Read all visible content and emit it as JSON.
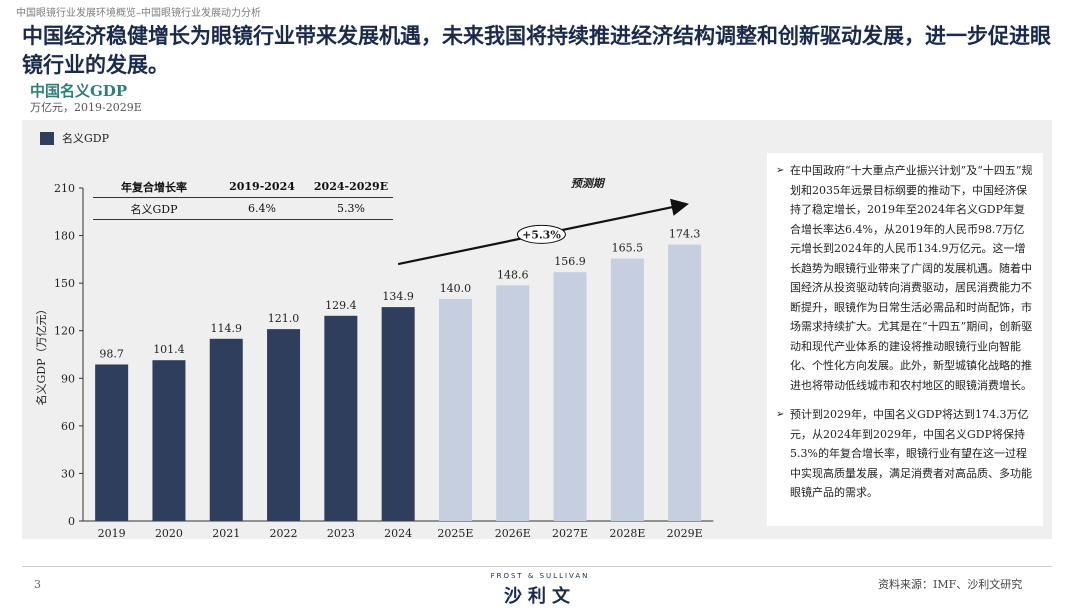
{
  "breadcrumb": "中国眼镜行业发展环境概览–中国眼镜行业发展动力分析",
  "headline": "中国经济稳健增长为眼镜行业带来发展机遇，未来我国将持续推进经济结构调整和创新驱动发展，进一步促进眼镜行业的发展。",
  "chart_title": "中国名义GDP",
  "chart_unit": "万亿元，2019-2029E",
  "cagr_table": {
    "headers": [
      "年复合增长率",
      "2019-2024",
      "2024-2029E"
    ],
    "rows": [
      [
        "名义GDP",
        "6.4%",
        "5.3%"
      ]
    ]
  },
  "chart_data": {
    "type": "bar",
    "categories": [
      "2019",
      "2020",
      "2021",
      "2022",
      "2023",
      "2024",
      "2025E",
      "2026E",
      "2027E",
      "2028E",
      "2029E"
    ],
    "series": [
      {
        "name": "名义GDP",
        "values": [
          98.7,
          101.4,
          114.9,
          121.0,
          129.4,
          134.9,
          140.0,
          148.6,
          156.9,
          165.5,
          174.3
        ]
      }
    ],
    "data_labels": [
      "98.7",
      "101.4",
      "114.9",
      "121.0",
      "129.4",
      "134.9",
      "140.0",
      "148.6",
      "156.9",
      "165.5",
      "174.3"
    ],
    "forecast_from_index": 6,
    "ylabel": "名义GDP（万亿元）",
    "yticks": [
      0,
      30,
      60,
      90,
      120,
      150,
      180,
      210
    ],
    "ylim": [
      0,
      210
    ],
    "legend": "top-left",
    "grid": false,
    "forecast_label": "预测期",
    "growth_annotation": "+5.3%",
    "colors": {
      "actual": "#2e3e5c",
      "forecast": "#c5cfe0"
    }
  },
  "text_panel": {
    "bullets": [
      "在中国政府“十大重点产业振兴计划”及“十四五”规划和2035年远景目标纲要的推动下，中国经济保持了稳定增长，2019年至2024年名义GDP年复合增长率达6.4%，从2019年的人民币98.7万亿元增长到2024年的人民币134.9万亿元。这一增长趋势为眼镜行业带来了广阔的发展机遇。随着中国经济从投资驱动转向消费驱动，居民消费能力不断提升，眼镜作为日常生活必需品和时尚配饰，市场需求持续扩大。尤其是在“十四五”期间，创新驱动和现代产业体系的建设将推动眼镜行业向智能化、个性化方向发展。此外，新型城镇化战略的推进也将带动低线城市和农村地区的眼镜消费增长。",
      "预计到2029年，中国名义GDP将达到174.3万亿元，从2024年到2029年，中国名义GDP将保持5.3%的年复合增长率，眼镜行业有望在这一过程中实现高质量发展，满足消费者对高品质、多功能眼镜产品的需求。"
    ]
  },
  "footer": {
    "page_number": "3",
    "logo_top": "FROST & SULLIVAN",
    "logo_main": "沙利文",
    "source": "资料来源：IMF、沙利文研究"
  }
}
